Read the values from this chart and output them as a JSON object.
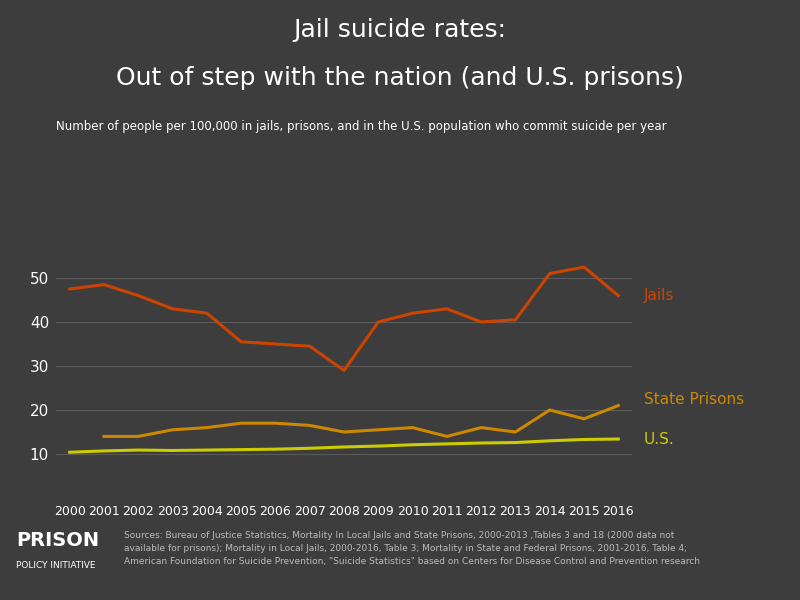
{
  "title_line1": "Jail suicide rates:",
  "title_line2": "Out of step with the nation (and U.S. prisons)",
  "subtitle": "Number of people per 100,000 in jails, prisons, and in the U.S. population who commit suicide per year",
  "background_color": "#3d3d3d",
  "text_color": "#ffffff",
  "years": [
    2000,
    2001,
    2002,
    2003,
    2004,
    2005,
    2006,
    2007,
    2008,
    2009,
    2010,
    2011,
    2012,
    2013,
    2014,
    2015,
    2016
  ],
  "jails": [
    47.5,
    48.5,
    46.0,
    43.0,
    42.0,
    35.5,
    35.0,
    34.5,
    29.0,
    40.0,
    42.0,
    43.0,
    40.0,
    40.5,
    51.0,
    52.5,
    46.0
  ],
  "state_prisons": [
    null,
    14.0,
    14.0,
    15.5,
    16.0,
    17.0,
    17.0,
    16.5,
    15.0,
    15.5,
    16.0,
    14.0,
    16.0,
    15.0,
    20.0,
    18.0,
    21.0
  ],
  "us_general": [
    10.4,
    10.7,
    10.9,
    10.8,
    10.9,
    11.0,
    11.1,
    11.3,
    11.6,
    11.8,
    12.1,
    12.3,
    12.5,
    12.6,
    13.0,
    13.3,
    13.4
  ],
  "jails_color": "#cc4400",
  "state_prisons_color": "#cc8800",
  "us_color": "#cccc00",
  "grid_color": "#5a5a5a",
  "ylim": [
    0,
    60
  ],
  "yticks": [
    10,
    20,
    30,
    40,
    50
  ],
  "source_text_normal1": "Sources: Bureau of Justice Statistics, ",
  "source_text_italic1": "Mortality In Local Jails and State Prisons, 2000-2013",
  "source_text_normal2": " ,Tables 3 and 18 (2000 data not available for prisons); ",
  "source_text_italic2": "Mortality in Local Jails, 2000-2016,",
  "source_text_normal3": " Table 3; ",
  "source_text_italic3": "Mortality in State and Federal Prisons, 2001-2016,",
  "source_text_normal4": " Table 4;\nAmerican Foundation for Suicide Prevention, \"Suicide Statistics\" based on Centers for Disease Control and Prevention research",
  "logo_text_prison": "PRISON",
  "logo_text_policy": "POLICY INITIATIVE"
}
